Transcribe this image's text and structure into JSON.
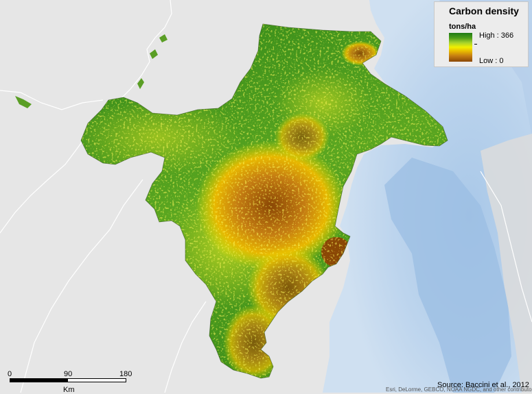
{
  "legend": {
    "title": "Carbon density",
    "units": "tons/ha",
    "high_label": "High : 366",
    "low_label": "Low : 0",
    "ramp_colors": [
      "#1f7a16",
      "#4e9e1a",
      "#a6d22c",
      "#f2f000",
      "#e8b800",
      "#c57d12",
      "#8a4705"
    ]
  },
  "scale_bar": {
    "ticks": [
      "0",
      "90",
      "180"
    ],
    "units": "Km"
  },
  "source_text": "Source: Baccini et al., 2012",
  "attribution_text": "Esri, DeLorme, GEBCO, NOAA NGDC, and other contributors",
  "colors": {
    "land_background": "#e6e6e6",
    "ocean_shallow": "#c8dcef",
    "ocean_deep": "#8fb4de",
    "border_line": "#ffffff",
    "high_carbon": "#1f7a16",
    "low_carbon": "#8a4705"
  }
}
